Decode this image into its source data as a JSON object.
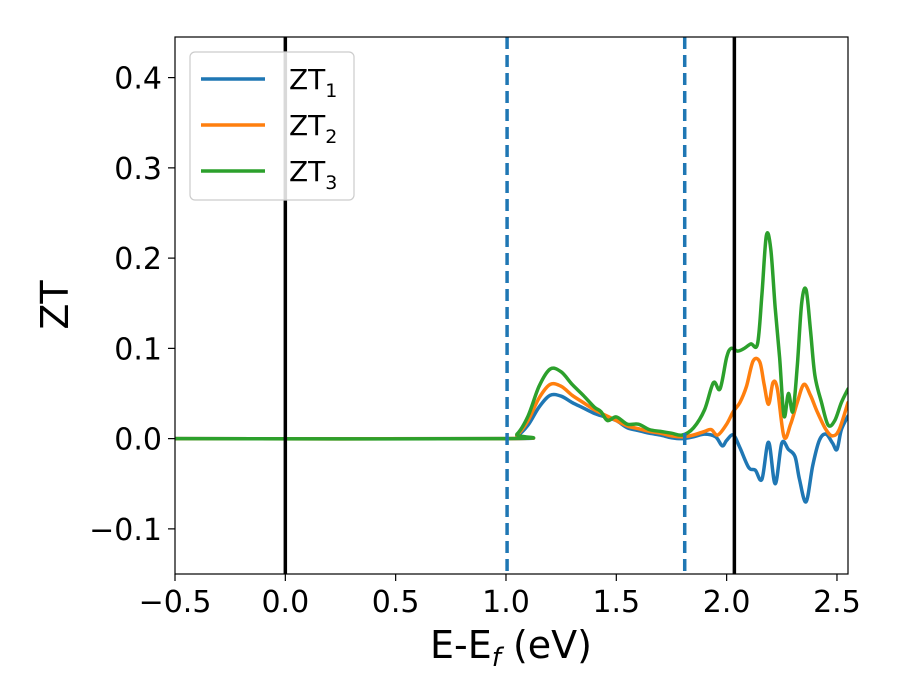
{
  "chart_data": {
    "type": "line",
    "xlabel_main": "E-E",
    "xlabel_sub": "f",
    "xlabel_unit": " (eV)",
    "ylabel": "ZT",
    "xlim": [
      -0.5,
      2.55
    ],
    "ylim": [
      -0.15,
      0.445
    ],
    "grid": false,
    "legend_placement": "top-left",
    "xticks": [
      -0.5,
      0.0,
      0.5,
      1.0,
      1.5,
      2.0,
      2.5
    ],
    "xtick_labels": [
      "−0.5",
      "0.0",
      "0.5",
      "1.0",
      "1.5",
      "2.0",
      "2.5"
    ],
    "yticks": [
      -0.1,
      0.0,
      0.1,
      0.2,
      0.3,
      0.4
    ],
    "ytick_labels": [
      "−0.1",
      "0.0",
      "0.1",
      "0.2",
      "0.3",
      "0.4"
    ],
    "vlines": [
      {
        "x": 0.0,
        "style": "solid",
        "color": "#000000"
      },
      {
        "x": 1.005,
        "style": "dashed",
        "color": "#1f77b4"
      },
      {
        "x": 1.81,
        "style": "dashed",
        "color": "#1f77b4"
      },
      {
        "x": 2.035,
        "style": "solid",
        "color": "#000000"
      }
    ],
    "series": [
      {
        "name_main": "ZT",
        "name_sub": "1",
        "color": "#1f77b4",
        "points": [
          [
            -0.5,
            0
          ],
          [
            1.0,
            0
          ],
          [
            1.05,
            0.003
          ],
          [
            1.1,
            0.015
          ],
          [
            1.15,
            0.035
          ],
          [
            1.2,
            0.048
          ],
          [
            1.25,
            0.047
          ],
          [
            1.3,
            0.04
          ],
          [
            1.35,
            0.034
          ],
          [
            1.4,
            0.028
          ],
          [
            1.45,
            0.024
          ],
          [
            1.5,
            0.02
          ],
          [
            1.55,
            0.012
          ],
          [
            1.6,
            0.009
          ],
          [
            1.65,
            0.006
          ],
          [
            1.7,
            0.004
          ],
          [
            1.75,
            0.001
          ],
          [
            1.8,
            0.0
          ],
          [
            1.85,
            0.002
          ],
          [
            1.9,
            0.005
          ],
          [
            1.95,
            0.002
          ],
          [
            1.98,
            -0.008
          ],
          [
            2.0,
            -0.002
          ],
          [
            2.03,
            0.004
          ],
          [
            2.06,
            -0.01
          ],
          [
            2.1,
            -0.032
          ],
          [
            2.13,
            -0.035
          ],
          [
            2.16,
            -0.045
          ],
          [
            2.19,
            -0.004
          ],
          [
            2.22,
            -0.05
          ],
          [
            2.25,
            -0.005
          ],
          [
            2.28,
            -0.012
          ],
          [
            2.31,
            -0.02
          ],
          [
            2.33,
            -0.045
          ],
          [
            2.36,
            -0.07
          ],
          [
            2.39,
            -0.03
          ],
          [
            2.42,
            -0.002
          ],
          [
            2.45,
            0.005
          ],
          [
            2.48,
            -0.005
          ],
          [
            2.5,
            -0.012
          ],
          [
            2.52,
            0.01
          ],
          [
            2.55,
            0.025
          ]
        ]
      },
      {
        "name_main": "ZT",
        "name_sub": "2",
        "color": "#ff7f0e",
        "points": [
          [
            -0.5,
            0
          ],
          [
            1.0,
            0
          ],
          [
            1.05,
            0.004
          ],
          [
            1.1,
            0.02
          ],
          [
            1.15,
            0.045
          ],
          [
            1.2,
            0.06
          ],
          [
            1.25,
            0.058
          ],
          [
            1.3,
            0.048
          ],
          [
            1.35,
            0.04
          ],
          [
            1.4,
            0.032
          ],
          [
            1.45,
            0.026
          ],
          [
            1.5,
            0.02
          ],
          [
            1.55,
            0.014
          ],
          [
            1.6,
            0.011
          ],
          [
            1.65,
            0.008
          ],
          [
            1.7,
            0.006
          ],
          [
            1.75,
            0.003
          ],
          [
            1.8,
            0.002
          ],
          [
            1.85,
            0.004
          ],
          [
            1.9,
            0.008
          ],
          [
            1.93,
            0.01
          ],
          [
            1.96,
            0.004
          ],
          [
            2.0,
            0.016
          ],
          [
            2.03,
            0.03
          ],
          [
            2.06,
            0.04
          ],
          [
            2.09,
            0.058
          ],
          [
            2.12,
            0.086
          ],
          [
            2.15,
            0.085
          ],
          [
            2.17,
            0.06
          ],
          [
            2.19,
            0.038
          ],
          [
            2.21,
            0.062
          ],
          [
            2.23,
            0.055
          ],
          [
            2.26,
            0.002
          ],
          [
            2.29,
            0.016
          ],
          [
            2.32,
            0.04
          ],
          [
            2.35,
            0.06
          ],
          [
            2.38,
            0.048
          ],
          [
            2.41,
            0.03
          ],
          [
            2.45,
            0.01
          ],
          [
            2.48,
            0.003
          ],
          [
            2.51,
            0.01
          ],
          [
            2.55,
            0.04
          ]
        ]
      },
      {
        "name_main": "ZT",
        "name_sub": "3",
        "color": "#2ca02c",
        "points": [
          [
            -0.5,
            0
          ],
          [
            1.0,
            0
          ],
          [
            1.05,
            0.005
          ],
          [
            1.1,
            0.025
          ],
          [
            1.15,
            0.058
          ],
          [
            1.2,
            0.077
          ],
          [
            1.25,
            0.074
          ],
          [
            1.3,
            0.06
          ],
          [
            1.35,
            0.048
          ],
          [
            1.4,
            0.035
          ],
          [
            1.43,
            0.03
          ],
          [
            1.46,
            0.02
          ],
          [
            1.5,
            0.024
          ],
          [
            1.55,
            0.016
          ],
          [
            1.6,
            0.016
          ],
          [
            1.65,
            0.01
          ],
          [
            1.7,
            0.008
          ],
          [
            1.75,
            0.006
          ],
          [
            1.8,
            0.004
          ],
          [
            1.85,
            0.012
          ],
          [
            1.9,
            0.032
          ],
          [
            1.94,
            0.062
          ],
          [
            1.97,
            0.055
          ],
          [
            2.0,
            0.09
          ],
          [
            2.02,
            0.1
          ],
          [
            2.05,
            0.097
          ],
          [
            2.08,
            0.1
          ],
          [
            2.11,
            0.105
          ],
          [
            2.14,
            0.105
          ],
          [
            2.16,
            0.16
          ],
          [
            2.18,
            0.225
          ],
          [
            2.2,
            0.21
          ],
          [
            2.22,
            0.145
          ],
          [
            2.24,
            0.09
          ],
          [
            2.26,
            0.025
          ],
          [
            2.28,
            0.05
          ],
          [
            2.3,
            0.03
          ],
          [
            2.32,
            0.08
          ],
          [
            2.34,
            0.15
          ],
          [
            2.36,
            0.165
          ],
          [
            2.38,
            0.12
          ],
          [
            2.4,
            0.07
          ],
          [
            2.43,
            0.04
          ],
          [
            2.46,
            0.015
          ],
          [
            2.49,
            0.02
          ],
          [
            2.52,
            0.04
          ],
          [
            2.55,
            0.055
          ]
        ]
      }
    ]
  }
}
